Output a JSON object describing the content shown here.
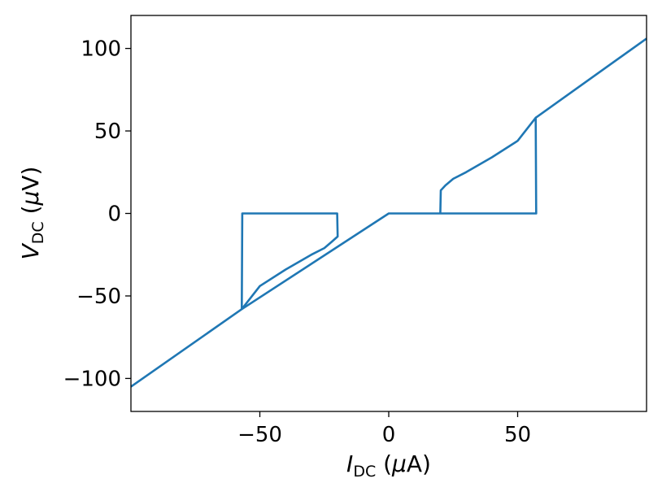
{
  "chart_data": {
    "type": "line",
    "title": "",
    "xlabel": {
      "var": "I",
      "sub": "DC",
      "unit_open": " (",
      "mu": "μ",
      "unit": "A)"
    },
    "ylabel": {
      "var": "V",
      "sub": "DC",
      "unit_open": " (",
      "mu": "μ",
      "unit": "V)"
    },
    "xlim": [
      -100,
      100
    ],
    "ylim": [
      -120,
      120
    ],
    "xticks": [
      -50,
      0,
      50
    ],
    "xtick_labels": [
      "−50",
      "0",
      "50"
    ],
    "yticks": [
      -100,
      -50,
      0,
      50,
      100
    ],
    "ytick_labels": [
      "−100",
      "−50",
      "0",
      "50",
      "100"
    ],
    "grid": false,
    "color": "#1f77b4",
    "series": [
      {
        "x": [
          -100,
          -57,
          -56.8,
          -20,
          -20,
          -19.8,
          -22,
          -25,
          -30,
          -40,
          -50,
          -57
        ],
        "y": [
          -105,
          -58,
          0,
          0,
          0,
          -14,
          -17,
          -21,
          -25,
          -34,
          -44,
          -58
        ]
      },
      {
        "x": [
          -57,
          0,
          20,
          20.2,
          22,
          25,
          30,
          40,
          50,
          57,
          57.2,
          20
        ],
        "y": [
          -58,
          0,
          0,
          14,
          17,
          21,
          25,
          34,
          44,
          58,
          0,
          0
        ]
      },
      {
        "x": [
          57,
          100
        ],
        "y": [
          58,
          106
        ]
      }
    ]
  }
}
